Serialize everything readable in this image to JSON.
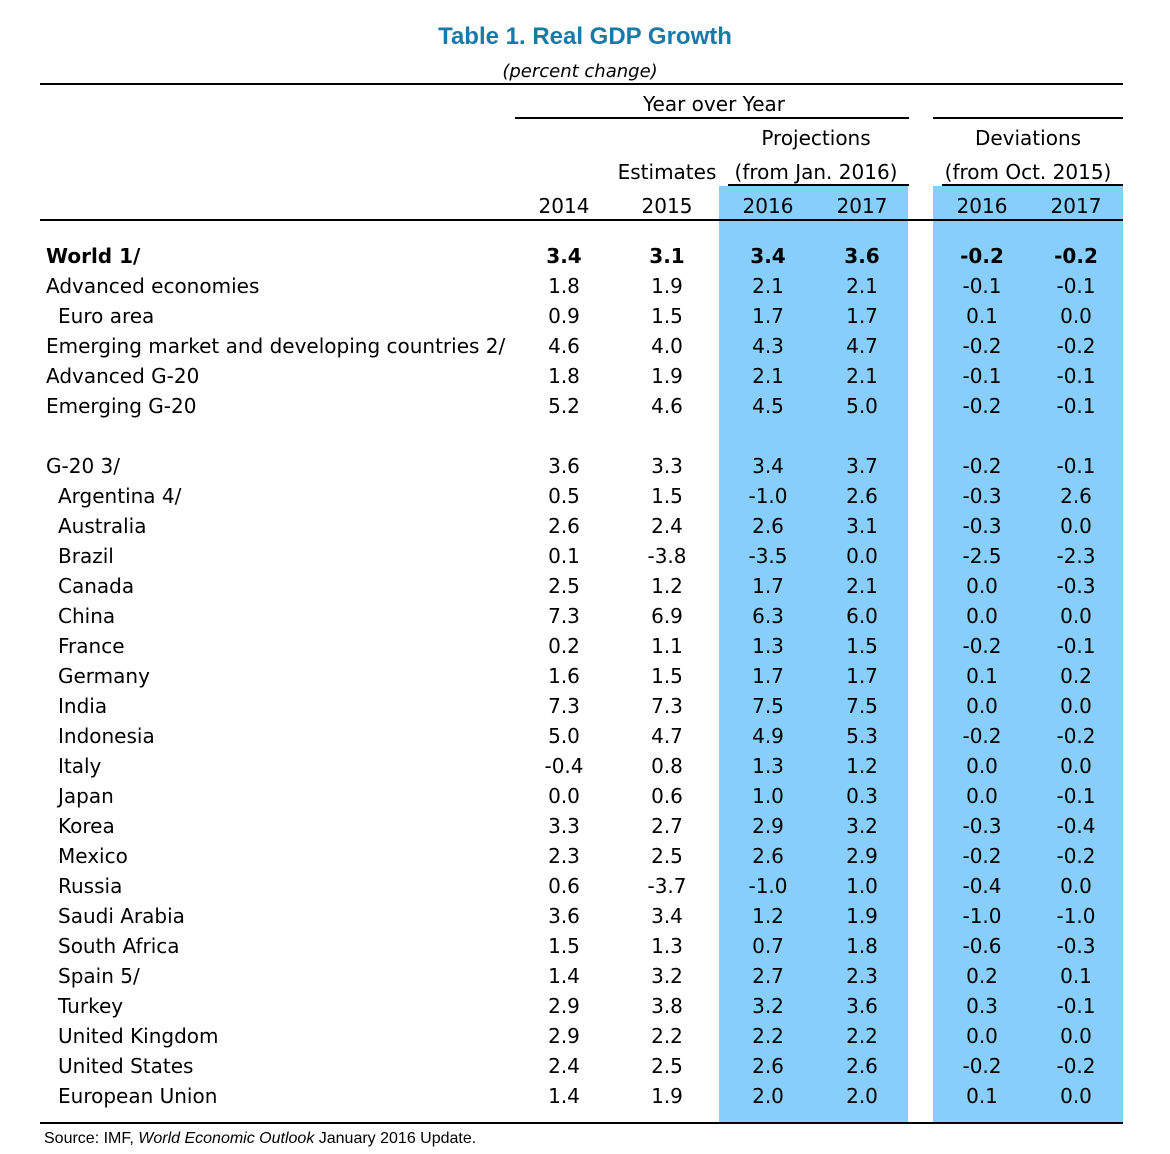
{
  "title": "Table 1. Real GDP Growth",
  "subtitle": "(percent change)",
  "header": {
    "year_over_year": "Year over Year",
    "projections_l1": "Projections",
    "projections_l2": "(from Jan. 2016)",
    "estimates": "Estimates",
    "deviations_l1": "Deviations",
    "deviations_l2": "(from Oct. 2015)",
    "years": [
      "2014",
      "2015",
      "2016",
      "2017",
      "2016",
      "2017"
    ]
  },
  "colors": {
    "title": "#1a7aa6",
    "band": "#87cefa"
  },
  "rows": [
    {
      "label": "World 1/",
      "values": [
        "3.4",
        "3.1",
        "3.4",
        "3.6",
        "-0.2",
        "-0.2"
      ]
    },
    {
      "label": "Advanced economies",
      "values": [
        "1.8",
        "1.9",
        "2.1",
        "2.1",
        "-0.1",
        "-0.1"
      ]
    },
    {
      "label": "Euro area",
      "values": [
        "0.9",
        "1.5",
        "1.7",
        "1.7",
        "0.1",
        "0.0"
      ]
    },
    {
      "label": "Emerging market and developing countries 2/",
      "values": [
        "4.6",
        "4.0",
        "4.3",
        "4.7",
        "-0.2",
        "-0.2"
      ]
    },
    {
      "label": "Advanced G-20",
      "values": [
        "1.8",
        "1.9",
        "2.1",
        "2.1",
        "-0.1",
        "-0.1"
      ]
    },
    {
      "label": "Emerging G-20",
      "values": [
        "5.2",
        "4.6",
        "4.5",
        "5.0",
        "-0.2",
        "-0.1"
      ]
    },
    {
      "label": "G-20 3/",
      "values": [
        "3.6",
        "3.3",
        "3.4",
        "3.7",
        "-0.2",
        "-0.1"
      ]
    },
    {
      "label": "Argentina 4/",
      "values": [
        "0.5",
        "1.5",
        "-1.0",
        "2.6",
        "-0.3",
        "2.6"
      ]
    },
    {
      "label": "Australia",
      "values": [
        "2.6",
        "2.4",
        "2.6",
        "3.1",
        "-0.3",
        "0.0"
      ]
    },
    {
      "label": "Brazil",
      "values": [
        "0.1",
        "-3.8",
        "-3.5",
        "0.0",
        "-2.5",
        "-2.3"
      ]
    },
    {
      "label": "Canada",
      "values": [
        "2.5",
        "1.2",
        "1.7",
        "2.1",
        "0.0",
        "-0.3"
      ]
    },
    {
      "label": "China",
      "values": [
        "7.3",
        "6.9",
        "6.3",
        "6.0",
        "0.0",
        "0.0"
      ]
    },
    {
      "label": "France",
      "values": [
        "0.2",
        "1.1",
        "1.3",
        "1.5",
        "-0.2",
        "-0.1"
      ]
    },
    {
      "label": "Germany",
      "values": [
        "1.6",
        "1.5",
        "1.7",
        "1.7",
        "0.1",
        "0.2"
      ]
    },
    {
      "label": "India",
      "values": [
        "7.3",
        "7.3",
        "7.5",
        "7.5",
        "0.0",
        "0.0"
      ]
    },
    {
      "label": "Indonesia",
      "values": [
        "5.0",
        "4.7",
        "4.9",
        "5.3",
        "-0.2",
        "-0.2"
      ]
    },
    {
      "label": "Italy",
      "values": [
        "-0.4",
        "0.8",
        "1.3",
        "1.2",
        "0.0",
        "0.0"
      ]
    },
    {
      "label": "Japan",
      "values": [
        "0.0",
        "0.6",
        "1.0",
        "0.3",
        "0.0",
        "-0.1"
      ]
    },
    {
      "label": "Korea",
      "values": [
        "3.3",
        "2.7",
        "2.9",
        "3.2",
        "-0.3",
        "-0.4"
      ]
    },
    {
      "label": "Mexico",
      "values": [
        "2.3",
        "2.5",
        "2.6",
        "2.9",
        "-0.2",
        "-0.2"
      ]
    },
    {
      "label": "Russia",
      "values": [
        "0.6",
        "-3.7",
        "-1.0",
        "1.0",
        "-0.4",
        "0.0"
      ]
    },
    {
      "label": "Saudi Arabia",
      "values": [
        "3.6",
        "3.4",
        "1.2",
        "1.9",
        "-1.0",
        "-1.0"
      ]
    },
    {
      "label": "South Africa",
      "values": [
        "1.5",
        "1.3",
        "0.7",
        "1.8",
        "-0.6",
        "-0.3"
      ]
    },
    {
      "label": "Spain 5/",
      "values": [
        "1.4",
        "3.2",
        "2.7",
        "2.3",
        "0.2",
        "0.1"
      ]
    },
    {
      "label": "Turkey",
      "values": [
        "2.9",
        "3.8",
        "3.2",
        "3.6",
        "0.3",
        "-0.1"
      ]
    },
    {
      "label": "United Kingdom",
      "values": [
        "2.9",
        "2.2",
        "2.2",
        "2.2",
        "0.0",
        "0.0"
      ]
    },
    {
      "label": "United States",
      "values": [
        "2.4",
        "2.5",
        "2.6",
        "2.6",
        "-0.2",
        "-0.2"
      ]
    },
    {
      "label": "European Union",
      "values": [
        "1.4",
        "1.9",
        "2.0",
        "2.0",
        "0.1",
        "0.0"
      ]
    }
  ],
  "source": {
    "prefix": "Source: IMF, ",
    "publication": "World Economic Outlook",
    "suffix": " January 2016 Update."
  }
}
